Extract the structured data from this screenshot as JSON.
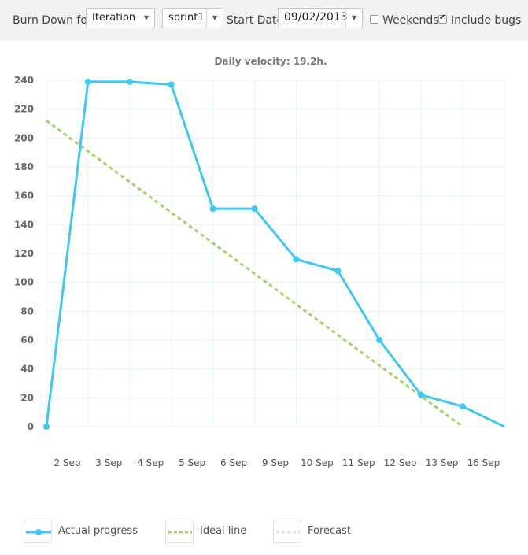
{
  "toolbar": {
    "burn_down_label": "Burn Down for",
    "type_select": "Iteration",
    "sprint_select": "sprint1",
    "start_date_label": "Start Date",
    "start_date_value": "09/02/2013",
    "weekends_label": "Weekends",
    "weekends_checked": false,
    "include_bugs_label": "Include bugs",
    "include_bugs_checked": true
  },
  "colors": {
    "actual": "#3fc8f4",
    "ideal": "#a7d36b",
    "forecast": "#dfe3e8",
    "grid": "#e6f3fb"
  },
  "chart_data": {
    "type": "line",
    "title": "Daily velocity: 19.2h.",
    "xlabel": "",
    "ylabel": "",
    "categories": [
      "2 Sep",
      "3 Sep",
      "4 Sep",
      "5 Sep",
      "6 Sep",
      "9 Sep",
      "10 Sep",
      "11 Sep",
      "12 Sep",
      "13 Sep",
      "16 Sep"
    ],
    "ylim": [
      0,
      240
    ],
    "yticks": [
      0,
      20,
      40,
      60,
      80,
      100,
      120,
      140,
      160,
      180,
      200,
      220,
      240
    ],
    "grid": true,
    "series": [
      {
        "name": "Actual progress",
        "style": "solid-markers",
        "x": [
          0,
          1,
          2,
          3,
          4,
          5,
          6,
          7,
          8,
          9,
          10,
          11
        ],
        "values": [
          0,
          239,
          239,
          237,
          151,
          151,
          116,
          108,
          60,
          22,
          14,
          0
        ],
        "markers": [
          true,
          true,
          true,
          true,
          true,
          true,
          true,
          true,
          true,
          true,
          true,
          false
        ]
      },
      {
        "name": "Ideal line",
        "style": "dashed",
        "x": [
          0,
          10
        ],
        "values": [
          212,
          0
        ]
      },
      {
        "name": "Forecast",
        "style": "dashed",
        "x": [],
        "values": []
      }
    ],
    "legend_position": "bottom"
  }
}
